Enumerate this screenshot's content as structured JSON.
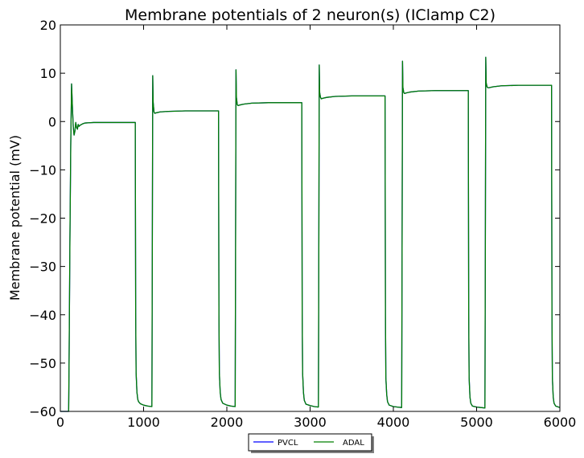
{
  "chart_data": {
    "type": "line",
    "title": "Membrane potentials of 2 neuron(s) (IClamp C2)",
    "xlabel": "",
    "ylabel": "Membrane potential (mV)",
    "xlim": [
      0,
      6000
    ],
    "ylim": [
      -60,
      20
    ],
    "xticks": [
      0,
      1000,
      2000,
      3000,
      4000,
      5000,
      6000
    ],
    "yticks": [
      -60,
      -50,
      -40,
      -30,
      -20,
      -10,
      0,
      10,
      20
    ],
    "xtick_labels": [
      "0",
      "1000",
      "2000",
      "3000",
      "4000",
      "5000",
      "6000"
    ],
    "ytick_labels": [
      "−60",
      "−50",
      "−40",
      "−30",
      "−20",
      "−10",
      "0",
      "10",
      "20"
    ],
    "grid": false,
    "legend_position": "bottom-center",
    "series": [
      {
        "name": "PVCL",
        "color": "#0000ff",
        "x": [
          0,
          100,
          105,
          115,
          125,
          135,
          145,
          155,
          165,
          175,
          185,
          195,
          205,
          215,
          225,
          235,
          245,
          255,
          265,
          280,
          300,
          350,
          400,
          500,
          600,
          700,
          800,
          900,
          905,
          910,
          920,
          930,
          940,
          960,
          1000,
          1050,
          1100,
          1105,
          1110,
          1115,
          1125,
          1135,
          1150,
          1200,
          1300,
          1500,
          1700,
          1900,
          1905,
          1910,
          1920,
          1930,
          1950,
          2000,
          2050,
          2100,
          2105,
          2110,
          2115,
          2125,
          2135,
          2150,
          2200,
          2300,
          2500,
          2700,
          2900,
          2905,
          2910,
          2920,
          2930,
          2950,
          3000,
          3050,
          3100,
          3105,
          3110,
          3115,
          3125,
          3135,
          3150,
          3200,
          3300,
          3500,
          3700,
          3900,
          3905,
          3910,
          3920,
          3930,
          3950,
          4000,
          4050,
          4100,
          4105,
          4110,
          4115,
          4125,
          4135,
          4150,
          4200,
          4300,
          4500,
          4700,
          4900,
          4905,
          4910,
          4920,
          4930,
          4950,
          5000,
          5050,
          5100,
          5105,
          5110,
          5115,
          5125,
          5135,
          5150,
          5200,
          5300,
          5500,
          5700,
          5900,
          5905,
          5910,
          5920,
          5930,
          5950,
          6000
        ],
        "y": [
          -60,
          -60,
          -50,
          -25,
          -5,
          7.8,
          3,
          -1,
          -2.8,
          -2,
          -0.2,
          -1.2,
          -1.6,
          -0.6,
          -1,
          -0.8,
          -0.7,
          -0.6,
          -0.5,
          -0.4,
          -0.3,
          -0.25,
          -0.2,
          -0.2,
          -0.2,
          -0.2,
          -0.2,
          -0.2,
          -40,
          -52,
          -56,
          -57.5,
          -58,
          -58.4,
          -58.7,
          -58.9,
          -59,
          -25,
          9.5,
          4,
          2,
          1.7,
          1.8,
          2,
          2.1,
          2.2,
          2.2,
          2.2,
          -40,
          -52,
          -56,
          -57.5,
          -58.3,
          -58.7,
          -58.9,
          -59,
          -25,
          10.7,
          5,
          3.5,
          3.3,
          3.4,
          3.6,
          3.8,
          3.9,
          3.9,
          3.9,
          -40,
          -52,
          -56,
          -57.7,
          -58.5,
          -58.8,
          -59,
          -59.1,
          -25,
          11.7,
          6,
          5,
          4.7,
          4.8,
          5,
          5.2,
          5.3,
          5.3,
          5.3,
          -40,
          -53,
          -56.5,
          -58,
          -58.7,
          -59,
          -59.1,
          -59.2,
          -25,
          12.5,
          7,
          6,
          5.8,
          5.9,
          6.1,
          6.3,
          6.4,
          6.4,
          6.4,
          -40,
          -53,
          -57,
          -58.3,
          -58.9,
          -59.1,
          -59.2,
          -59.3,
          -25,
          13.3,
          8,
          7.2,
          7,
          7,
          7.2,
          7.4,
          7.5,
          7.5,
          7.5,
          -40,
          -53,
          -57,
          -58.3,
          -58.9,
          -59.2
        ]
      },
      {
        "name": "ADAL",
        "color": "#007f00",
        "x": [
          0,
          100,
          105,
          115,
          125,
          135,
          145,
          155,
          165,
          175,
          185,
          195,
          205,
          215,
          225,
          235,
          245,
          255,
          265,
          280,
          300,
          350,
          400,
          500,
          600,
          700,
          800,
          900,
          905,
          910,
          920,
          930,
          940,
          960,
          1000,
          1050,
          1100,
          1105,
          1110,
          1115,
          1125,
          1135,
          1150,
          1200,
          1300,
          1500,
          1700,
          1900,
          1905,
          1910,
          1920,
          1930,
          1950,
          2000,
          2050,
          2100,
          2105,
          2110,
          2115,
          2125,
          2135,
          2150,
          2200,
          2300,
          2500,
          2700,
          2900,
          2905,
          2910,
          2920,
          2930,
          2950,
          3000,
          3050,
          3100,
          3105,
          3110,
          3115,
          3125,
          3135,
          3150,
          3200,
          3300,
          3500,
          3700,
          3900,
          3905,
          3910,
          3920,
          3930,
          3950,
          4000,
          4050,
          4100,
          4105,
          4110,
          4115,
          4125,
          4135,
          4150,
          4200,
          4300,
          4500,
          4700,
          4900,
          4905,
          4910,
          4920,
          4930,
          4950,
          5000,
          5050,
          5100,
          5105,
          5110,
          5115,
          5125,
          5135,
          5150,
          5200,
          5300,
          5500,
          5700,
          5900,
          5905,
          5910,
          5920,
          5930,
          5950,
          6000
        ],
        "y": [
          -60,
          -60,
          -50,
          -25,
          -5,
          7.8,
          3,
          -1,
          -2.8,
          -2,
          -0.2,
          -1.2,
          -1.6,
          -0.6,
          -1,
          -0.8,
          -0.7,
          -0.6,
          -0.5,
          -0.4,
          -0.3,
          -0.25,
          -0.2,
          -0.2,
          -0.2,
          -0.2,
          -0.2,
          -0.2,
          -40,
          -52,
          -56,
          -57.5,
          -58,
          -58.4,
          -58.7,
          -58.9,
          -59,
          -25,
          9.5,
          4,
          2,
          1.7,
          1.8,
          2,
          2.1,
          2.2,
          2.2,
          2.2,
          -40,
          -52,
          -56,
          -57.5,
          -58.3,
          -58.7,
          -58.9,
          -59,
          -25,
          10.7,
          5,
          3.5,
          3.3,
          3.4,
          3.6,
          3.8,
          3.9,
          3.9,
          3.9,
          -40,
          -52,
          -56,
          -57.7,
          -58.5,
          -58.8,
          -59,
          -59.1,
          -25,
          11.7,
          6,
          5,
          4.7,
          4.8,
          5,
          5.2,
          5.3,
          5.3,
          5.3,
          -40,
          -53,
          -56.5,
          -58,
          -58.7,
          -59,
          -59.1,
          -59.2,
          -25,
          12.5,
          7,
          6,
          5.8,
          5.9,
          6.1,
          6.3,
          6.4,
          6.4,
          6.4,
          -40,
          -53,
          -57,
          -58.3,
          -58.9,
          -59.1,
          -59.2,
          -59.3,
          -25,
          13.3,
          8,
          7.2,
          7,
          7,
          7.2,
          7.4,
          7.5,
          7.5,
          7.5,
          -40,
          -53,
          -57,
          -58.3,
          -58.9,
          -59.2
        ]
      }
    ]
  }
}
